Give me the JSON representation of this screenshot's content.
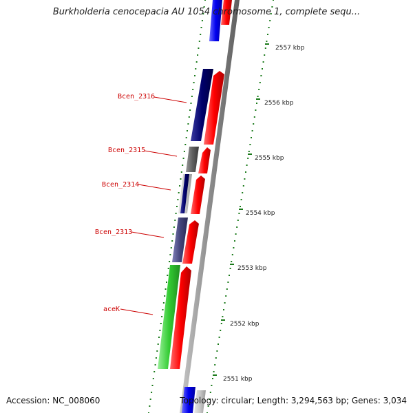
{
  "title": "Burkholderia cenocepacia AU 1054 chromosome 1, complete sequ...",
  "accession": "Accession: NC_008060",
  "info": {
    "topology": "Topology: circular;",
    "length": "Length: 3,294,563 bp;",
    "genes": "Genes: 3,034"
  },
  "ticks": [
    "2557 kbp",
    "2556 kbp",
    "2555 kbp",
    "2554 kbp",
    "2553 kbp",
    "2552 kbp",
    "2551 kbp"
  ],
  "gene_labels": [
    "Bcen_2316",
    "Bcen_2315",
    "Bcen_2314",
    "Bcen_2313",
    "aceK"
  ],
  "colors": {
    "forward": "#ff1a1a",
    "reverse_blue": "#0000ee",
    "reverse_navy": "#000077",
    "reverse_gray": "#6b6b6b",
    "reverse_slate": "#44447a",
    "reverse_green": "#33cc33",
    "backbone": "#9a9a9a",
    "tick_green": "#1a7a1a",
    "label_red": "#cc0000"
  }
}
